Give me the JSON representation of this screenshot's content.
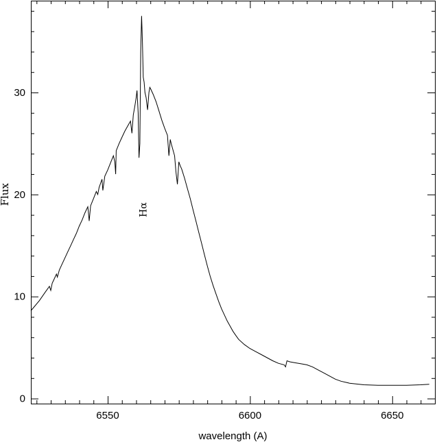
{
  "chart_data": {
    "type": "line",
    "xlabel": "wavelength (A)",
    "ylabel": "Flux",
    "xlim": [
      6523,
      6665
    ],
    "ylim": [
      -0.5,
      39
    ],
    "xticks": [
      6550,
      6600,
      6650
    ],
    "xtick_labels": [
      "6550",
      "6600",
      "6650"
    ],
    "yticks": [
      0,
      10,
      20,
      30
    ],
    "ytick_labels": [
      "0",
      "10",
      "20",
      "30"
    ],
    "grid": false,
    "annotations": [
      {
        "text": "Hα",
        "x": 6563.5,
        "y": 18.5,
        "vertical": true
      }
    ],
    "series": [
      {
        "x": [
          6523,
          6526,
          6528,
          6529.5,
          6530,
          6530.5,
          6531,
          6532,
          6532.3,
          6533,
          6534,
          6535,
          6536,
          6537,
          6538,
          6539,
          6540,
          6541,
          6542,
          6543,
          6543.2,
          6543.5,
          6544,
          6545,
          6546,
          6546.5,
          6547,
          6547.5,
          6548,
          6548.3,
          6549,
          6550,
          6551,
          6552,
          6552.5,
          6552.8,
          6553,
          6554,
          6555,
          6556,
          6557,
          6558,
          6558.5,
          6559,
          6559.5,
          6560,
          6560.3,
          6560.7,
          6561,
          6561.3,
          6561.6,
          6561.9,
          6562.2,
          6562.5,
          6562.8,
          6563.1,
          6563.5,
          6564,
          6564.5,
          6564.8,
          6565.2,
          6566,
          6567,
          6568,
          6569,
          6570,
          6571,
          6571.5,
          6572,
          6572.3,
          6573,
          6573.5,
          6574,
          6574.5,
          6575,
          6575.5,
          6576,
          6577,
          6578,
          6579,
          6580,
          6581,
          6582,
          6583,
          6584,
          6585,
          6586,
          6587,
          6588,
          6589,
          6590,
          6592,
          6593,
          6594,
          6595,
          6596,
          6598,
          6600,
          6602,
          6604,
          6606,
          6608,
          6610,
          6612,
          6612.5,
          6613,
          6614,
          6616,
          6618,
          6620,
          6622,
          6624,
          6626,
          6628,
          6630,
          6632,
          6635,
          6640,
          6645,
          6650,
          6655,
          6660,
          6663
        ],
        "y": [
          8.6,
          9.6,
          10.4,
          11.0,
          10.6,
          11.3,
          11.6,
          12.2,
          11.9,
          12.6,
          13.2,
          13.8,
          14.4,
          15.0,
          15.6,
          16.2,
          16.9,
          17.5,
          18.2,
          18.8,
          18.3,
          17.4,
          18.9,
          19.6,
          20.3,
          20.0,
          20.7,
          21.1,
          21.5,
          20.4,
          21.8,
          22.4,
          23.1,
          23.8,
          23.2,
          22.0,
          24.3,
          25.0,
          25.6,
          26.2,
          26.7,
          27.2,
          26.0,
          27.8,
          28.6,
          29.5,
          30.2,
          28.0,
          23.6,
          25.0,
          34.0,
          37.5,
          35.0,
          31.5,
          31.0,
          30.0,
          29.5,
          28.3,
          30.0,
          30.5,
          30.3,
          29.8,
          29.1,
          28.2,
          27.3,
          26.5,
          25.8,
          23.8,
          25.4,
          25.0,
          24.3,
          23.8,
          22.2,
          21.0,
          23.2,
          22.8,
          22.5,
          21.6,
          20.6,
          19.6,
          18.5,
          17.4,
          16.3,
          15.2,
          14.1,
          13.0,
          12.0,
          11.1,
          10.3,
          9.5,
          8.8,
          7.6,
          7.1,
          6.6,
          6.2,
          5.8,
          5.3,
          4.9,
          4.6,
          4.3,
          4.0,
          3.7,
          3.45,
          3.3,
          3.1,
          3.7,
          3.6,
          3.5,
          3.4,
          3.3,
          3.1,
          2.8,
          2.5,
          2.2,
          1.9,
          1.7,
          1.5,
          1.35,
          1.3,
          1.3,
          1.3,
          1.35,
          1.4
        ]
      }
    ]
  }
}
